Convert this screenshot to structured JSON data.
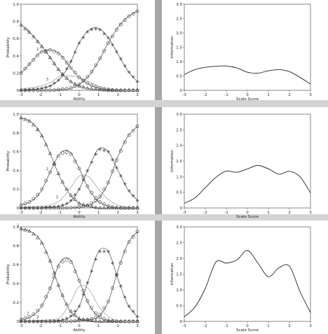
{
  "chart_data": [
    {
      "type": "line",
      "panel": "icc-1",
      "xlabel": "Ability",
      "ylabel": "Probability",
      "xlim": [
        -3,
        3
      ],
      "ylim": [
        0,
        1.0
      ],
      "xticks": [
        "-3",
        "-2",
        "-1",
        "0",
        "1",
        "2",
        "3"
      ],
      "yticks": [
        "0",
        "0.2",
        "0.4",
        "0.6",
        "0.8",
        "1.0"
      ],
      "curve_labels": [
        "1",
        "2",
        "3"
      ],
      "x": [
        -3,
        -2.5,
        -2,
        -1.5,
        -1,
        -0.5,
        0,
        0.5,
        1,
        1.5,
        2,
        2.5,
        3
      ],
      "series": [
        {
          "values": [
            0.76,
            0.66,
            0.53,
            0.38,
            0.22,
            0.11,
            0.05,
            0.02,
            0.01,
            0.0,
            0.0,
            0.0,
            0.0
          ]
        },
        {
          "values": [
            0.2,
            0.32,
            0.44,
            0.47,
            0.42,
            0.28,
            0.15,
            0.07,
            0.03,
            0.01,
            0.0,
            0.0,
            0.0
          ]
        },
        {
          "values": [
            0.02,
            0.03,
            0.05,
            0.09,
            0.16,
            0.17,
            0.15,
            0.1,
            0.05,
            0.02,
            0.01,
            0.0,
            0.0
          ]
        },
        {
          "values": [
            0.0,
            0.01,
            0.02,
            0.05,
            0.13,
            0.3,
            0.55,
            0.7,
            0.72,
            0.61,
            0.42,
            0.23,
            0.1
          ]
        },
        {
          "values": [
            0.0,
            0.0,
            0.0,
            0.0,
            0.01,
            0.02,
            0.07,
            0.17,
            0.34,
            0.55,
            0.73,
            0.85,
            0.92
          ]
        }
      ]
    },
    {
      "type": "line",
      "panel": "info-1",
      "xlabel": "Scale Score",
      "ylabel": "Information",
      "xlim": [
        -3,
        3
      ],
      "ylim": [
        0,
        3.0
      ],
      "xticks": [
        "-3",
        "-2",
        "-1",
        "0",
        "1",
        "2",
        "3"
      ],
      "yticks": [
        "0",
        "0.5",
        "1.0",
        "1.5",
        "2.0",
        "2.5",
        "3.0"
      ],
      "x": [
        -3,
        -2.5,
        -2,
        -1.5,
        -1,
        -0.5,
        0,
        0.5,
        1,
        1.5,
        2,
        2.5,
        3
      ],
      "series": [
        {
          "values": [
            0.55,
            0.72,
            0.8,
            0.84,
            0.85,
            0.78,
            0.63,
            0.6,
            0.68,
            0.72,
            0.65,
            0.45,
            0.22
          ]
        }
      ]
    },
    {
      "type": "line",
      "panel": "icc-2",
      "xlabel": "Ability",
      "ylabel": "Probability",
      "xlim": [
        -3,
        3
      ],
      "ylim": [
        0,
        1.0
      ],
      "xticks": [
        "-3",
        "-2",
        "-1",
        "0",
        "1",
        "2",
        "3"
      ],
      "yticks": [
        "0",
        "0.2",
        "0.4",
        "0.6",
        "0.8",
        "1.0"
      ],
      "curve_labels": [
        "1",
        "2",
        "3"
      ],
      "x": [
        -3,
        -2.5,
        -2,
        -1.5,
        -1,
        -0.5,
        0,
        0.5,
        1,
        1.5,
        2,
        2.5,
        3
      ],
      "series": [
        {
          "values": [
            0.96,
            0.92,
            0.8,
            0.58,
            0.33,
            0.15,
            0.05,
            0.02,
            0.0,
            0.0,
            0.0,
            0.0,
            0.0
          ]
        },
        {
          "values": [
            0.03,
            0.07,
            0.17,
            0.38,
            0.58,
            0.6,
            0.42,
            0.2,
            0.07,
            0.02,
            0.0,
            0.0,
            0.0
          ]
        },
        {
          "values": [
            0.0,
            0.01,
            0.02,
            0.03,
            0.08,
            0.2,
            0.34,
            0.33,
            0.2,
            0.09,
            0.03,
            0.01,
            0.0
          ]
        },
        {
          "values": [
            0.0,
            0.0,
            0.0,
            0.01,
            0.02,
            0.06,
            0.2,
            0.43,
            0.63,
            0.6,
            0.4,
            0.2,
            0.08
          ]
        },
        {
          "values": [
            0.0,
            0.0,
            0.0,
            0.0,
            0.0,
            0.0,
            0.01,
            0.03,
            0.1,
            0.27,
            0.55,
            0.76,
            0.87
          ]
        }
      ]
    },
    {
      "type": "line",
      "panel": "info-2",
      "xlabel": "Scale Score",
      "ylabel": "Information",
      "xlim": [
        -3,
        3
      ],
      "ylim": [
        0,
        3.0
      ],
      "xticks": [
        "-3",
        "-2",
        "-1",
        "0",
        "1",
        "2",
        "3"
      ],
      "yticks": [
        "0",
        "0.5",
        "1.0",
        "1.5",
        "2.0",
        "2.5",
        "3.0"
      ],
      "x": [
        -3,
        -2.5,
        -2,
        -1.5,
        -1,
        -0.5,
        0,
        0.5,
        1,
        1.5,
        2,
        2.5,
        3
      ],
      "series": [
        {
          "values": [
            0.15,
            0.32,
            0.65,
            0.98,
            1.18,
            1.14,
            1.25,
            1.36,
            1.25,
            1.08,
            1.17,
            1.0,
            0.48
          ]
        }
      ]
    },
    {
      "type": "line",
      "panel": "icc-3",
      "xlabel": "Ability",
      "ylabel": "Probability",
      "xlim": [
        -3,
        3
      ],
      "ylim": [
        0,
        1.0
      ],
      "xticks": [
        "-3",
        "-2",
        "-1",
        "0",
        "1",
        "2",
        "3"
      ],
      "yticks": [
        "0",
        "0.2",
        "0.4",
        "0.6",
        "0.8",
        "1.0"
      ],
      "curve_labels": [
        "1",
        "2",
        "3"
      ],
      "x": [
        -3,
        -2.5,
        -2,
        -1.5,
        -1,
        -0.5,
        0,
        0.5,
        1,
        1.5,
        2,
        2.5,
        3
      ],
      "series": [
        {
          "values": [
            0.98,
            0.95,
            0.86,
            0.64,
            0.34,
            0.12,
            0.03,
            0.01,
            0.0,
            0.0,
            0.0,
            0.0,
            0.0
          ]
        },
        {
          "values": [
            0.02,
            0.05,
            0.14,
            0.35,
            0.62,
            0.66,
            0.43,
            0.18,
            0.05,
            0.01,
            0.0,
            0.0,
            0.0
          ]
        },
        {
          "values": [
            0.0,
            0.0,
            0.01,
            0.02,
            0.04,
            0.18,
            0.37,
            0.34,
            0.16,
            0.05,
            0.01,
            0.0,
            0.0
          ]
        },
        {
          "values": [
            0.0,
            0.0,
            0.0,
            0.0,
            0.01,
            0.04,
            0.16,
            0.45,
            0.74,
            0.74,
            0.45,
            0.18,
            0.05
          ]
        },
        {
          "values": [
            0.0,
            0.0,
            0.0,
            0.0,
            0.0,
            0.0,
            0.01,
            0.02,
            0.05,
            0.21,
            0.54,
            0.82,
            0.95
          ]
        }
      ]
    },
    {
      "type": "line",
      "panel": "info-3",
      "xlabel": "Scale Score",
      "ylabel": "Information",
      "xlim": [
        -3,
        3
      ],
      "ylim": [
        0,
        3.0
      ],
      "xticks": [
        "-3",
        "-2",
        "-1",
        "0",
        "1",
        "2",
        "3"
      ],
      "yticks": [
        "0",
        "0.5",
        "1.0",
        "1.5",
        "2.0",
        "2.5",
        "3.0"
      ],
      "x": [
        -3,
        -2.5,
        -2,
        -1.5,
        -1,
        -0.5,
        0,
        0.5,
        1,
        1.5,
        2,
        2.5,
        3
      ],
      "series": [
        {
          "values": [
            0.15,
            0.45,
            1.05,
            1.88,
            1.85,
            1.95,
            2.25,
            1.85,
            1.42,
            1.7,
            1.75,
            0.95,
            0.28
          ]
        }
      ]
    }
  ]
}
